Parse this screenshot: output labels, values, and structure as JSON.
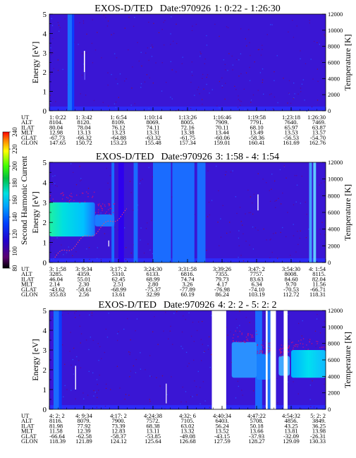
{
  "colorbar": {
    "label": "Second Harmonic Current",
    "ticks": [
      "80",
      "100",
      "120",
      "140",
      "160",
      "180",
      "200",
      "220",
      "240"
    ]
  },
  "chart_data": [
    {
      "type": "heatmap",
      "title": "EXOS-D/TED",
      "date": "Date:970926",
      "time_range": "1: 0:22 - 1:26:30",
      "ylabel": "Energy [eV]",
      "y2label": "Temperature [K]",
      "ylim": [
        0,
        5
      ],
      "y_ticks": [
        "0",
        "1",
        "2",
        "3",
        "4",
        "5"
      ],
      "y2lim": [
        0,
        12000
      ],
      "y2_ticks": [
        "0",
        "2000",
        "4000",
        "6000",
        "8000",
        "10000",
        "12000"
      ],
      "ephemeris": {
        "labels": [
          "UT",
          "ALT",
          "ILAT",
          "MLT",
          "GLAT",
          "GLON"
        ],
        "columns": [
          [
            "1: 0:22",
            "8104.",
            "80.04",
            "12.98",
            "-67.73",
            "147.65"
          ],
          [
            "1: 3:42",
            "8120.",
            "78.04",
            "13.13",
            "-66.32",
            "150.72"
          ],
          [
            "1: 6:54",
            "8109.",
            "76.12",
            "13.23",
            "-64.88",
            "153.23"
          ],
          [
            "1:10:14",
            "8069.",
            "74.11",
            "13.31",
            "-63.32",
            "155.48"
          ],
          [
            "1:13:26",
            "8005.",
            "72.16",
            "13.38",
            "-61.75",
            "157.34"
          ],
          [
            "1:16:46",
            "7909.",
            "70.11",
            "13.44",
            "-60.06",
            "159.01"
          ],
          [
            "1:19:58",
            "7791.",
            "68.10",
            "13.49",
            "-58.36",
            "160.41"
          ],
          [
            "1:23:18",
            "7640.",
            "65.97",
            "13.53",
            "-56.53",
            "161.69"
          ],
          [
            "1:26:30",
            "7469.",
            "63.87",
            "13.57",
            "-54.70",
            "162.76"
          ]
        ]
      }
    },
    {
      "type": "heatmap",
      "title": "EXOS-D/TED",
      "date": "Date:970926",
      "time_range": "3: 1:58 - 4: 1:54",
      "ylabel": "Energy [eV]",
      "y2label": "Temperature [K]",
      "ylim": [
        0,
        5
      ],
      "y_ticks": [
        "0",
        "1",
        "2",
        "3",
        "4",
        "5"
      ],
      "y2lim": [
        0,
        12000
      ],
      "y2_ticks": [
        "0",
        "2000",
        "4000",
        "6000",
        "8000",
        "10000",
        "12000"
      ],
      "ephemeris": {
        "labels": [
          "UT",
          "ALT",
          "ILAT",
          "MLT",
          "GLAT",
          "GLON"
        ],
        "columns": [
          [
            "3: 1:58",
            "3285.",
            "46.04",
            "2.14",
            "-43.62",
            "355.83"
          ],
          [
            "3: 9:34",
            "4359.",
            "55.01",
            "2.30",
            "-58.61",
            "2.56"
          ],
          [
            "3:17: 2",
            "5310.",
            "62.45",
            "2.51",
            "-68.99",
            "13.61"
          ],
          [
            "3:24:30",
            "6133.",
            "68.99",
            "2.80",
            "-75.37",
            "32.99"
          ],
          [
            "3:31:58",
            "6816.",
            "74.74",
            "3.26",
            "-77.89",
            "60.19"
          ],
          [
            "3:39:26",
            "7355.",
            "79.73",
            "4.17",
            "-76.98",
            "86.24"
          ],
          [
            "3:47: 2",
            "7757.",
            "83.63",
            "6.34",
            "-74.10",
            "103.19"
          ],
          [
            "3:54:30",
            "8008.",
            "84.60",
            "9.70",
            "-70.53",
            "112.72"
          ],
          [
            "4: 1:54",
            "8115.",
            "82.04",
            "11.56",
            "-66.71",
            "118.31"
          ]
        ]
      }
    },
    {
      "type": "heatmap",
      "title": "EXOS-D/TED",
      "date": "Date:970926",
      "time_range": "4: 2: 2 - 5: 2: 2",
      "ylabel": "Energy [eV]",
      "y2label": "Temperature [K]",
      "ylim": [
        0,
        5
      ],
      "y_ticks": [
        "0",
        "1",
        "2",
        "3",
        "4",
        "5"
      ],
      "y2lim": [
        0,
        12000
      ],
      "y2_ticks": [
        "0",
        "2000",
        "4000",
        "6000",
        "8000",
        "10000",
        "12000"
      ],
      "ephemeris": {
        "labels": [
          "UT",
          "ALT",
          "ILAT",
          "MLT",
          "GLAT",
          "GLON"
        ],
        "columns": [
          [
            "4: 2: 2",
            "8116.",
            "81.98",
            "11.58",
            "-66.64",
            "118.39"
          ],
          [
            "4: 9:34",
            "8079.",
            "77.92",
            "12.39",
            "-62.58",
            "121.89"
          ],
          [
            "4:17: 2",
            "7900.",
            "73.39",
            "12.83",
            "-58.37",
            "124.12"
          ],
          [
            "4:24:38",
            "7572.",
            "68.38",
            "13.11",
            "-53.85",
            "125.64"
          ],
          [
            "4:32: 6",
            "7105.",
            "63.02",
            "13.32",
            "-49.08",
            "126.68"
          ],
          [
            "4:40:34",
            "6403.",
            "56.24",
            "13.52",
            "-43.15",
            "127.59"
          ],
          [
            "4:47:22",
            "5708.",
            "50.18",
            "13.66",
            "-37.93",
            "128.27"
          ],
          [
            "4:54:32",
            "4856.",
            "43.25",
            "13.81",
            "-32.09",
            "129.09"
          ],
          [
            "5: 2: 2",
            "3849.",
            "36.25",
            "13.98",
            "-26.31",
            "130.33"
          ]
        ]
      }
    }
  ]
}
